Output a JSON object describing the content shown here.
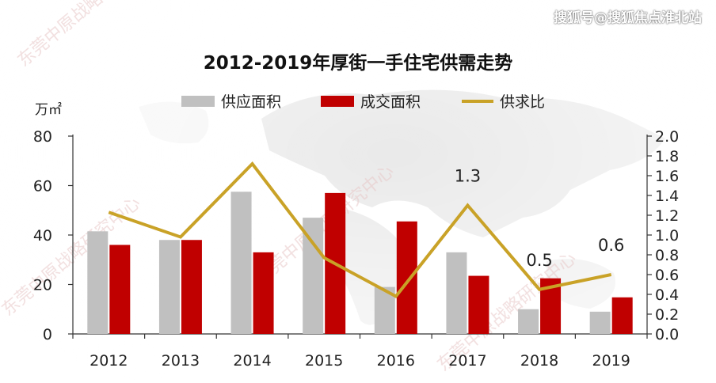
{
  "watermark": "搜狐号@搜狐焦点淮北站",
  "background_watermarks": [
    "东莞中原战略研究中心",
    "东莞中原战略研究中心",
    "东莞中原战略研究中心",
    "东莞中原战略研究中心"
  ],
  "colors": {
    "supply": "#c0c0c0",
    "deal": "#c00000",
    "ratio": "#c9a227"
  },
  "chart_data": {
    "type": "bar",
    "title": "2012-2019年厚街一手住宅供需走势",
    "unit_label": "万㎡",
    "categories": [
      "2012",
      "2013",
      "2014",
      "2015",
      "2016",
      "2017",
      "2018",
      "2019"
    ],
    "series": [
      {
        "name": "供应面积",
        "type": "bar",
        "axis": "left",
        "values": [
          41.5,
          38,
          57.5,
          47,
          19,
          33,
          10,
          9
        ]
      },
      {
        "name": "成交面积",
        "type": "bar",
        "axis": "left",
        "values": [
          36,
          38,
          33,
          57,
          45.5,
          23.5,
          22.5,
          14.8
        ]
      },
      {
        "name": "供求比",
        "type": "line",
        "axis": "right",
        "values": [
          1.23,
          0.98,
          1.72,
          0.77,
          0.38,
          1.3,
          0.45,
          0.6
        ]
      }
    ],
    "y_left": {
      "lim": [
        0,
        80
      ],
      "ticks": [
        "0",
        "20",
        "40",
        "60",
        "80"
      ]
    },
    "y_right": {
      "lim": [
        0,
        2.0
      ],
      "ticks": [
        "0.0",
        "0.2",
        "0.4",
        "0.6",
        "0.8",
        "1.0",
        "1.2",
        "1.4",
        "1.6",
        "1.8",
        "2.0"
      ]
    },
    "data_labels": [
      {
        "index": 5,
        "text": "1.3"
      },
      {
        "index": 6,
        "text": "0.5"
      },
      {
        "index": 7,
        "text": "0.6"
      }
    ],
    "legend_position": "top",
    "grid": false
  }
}
